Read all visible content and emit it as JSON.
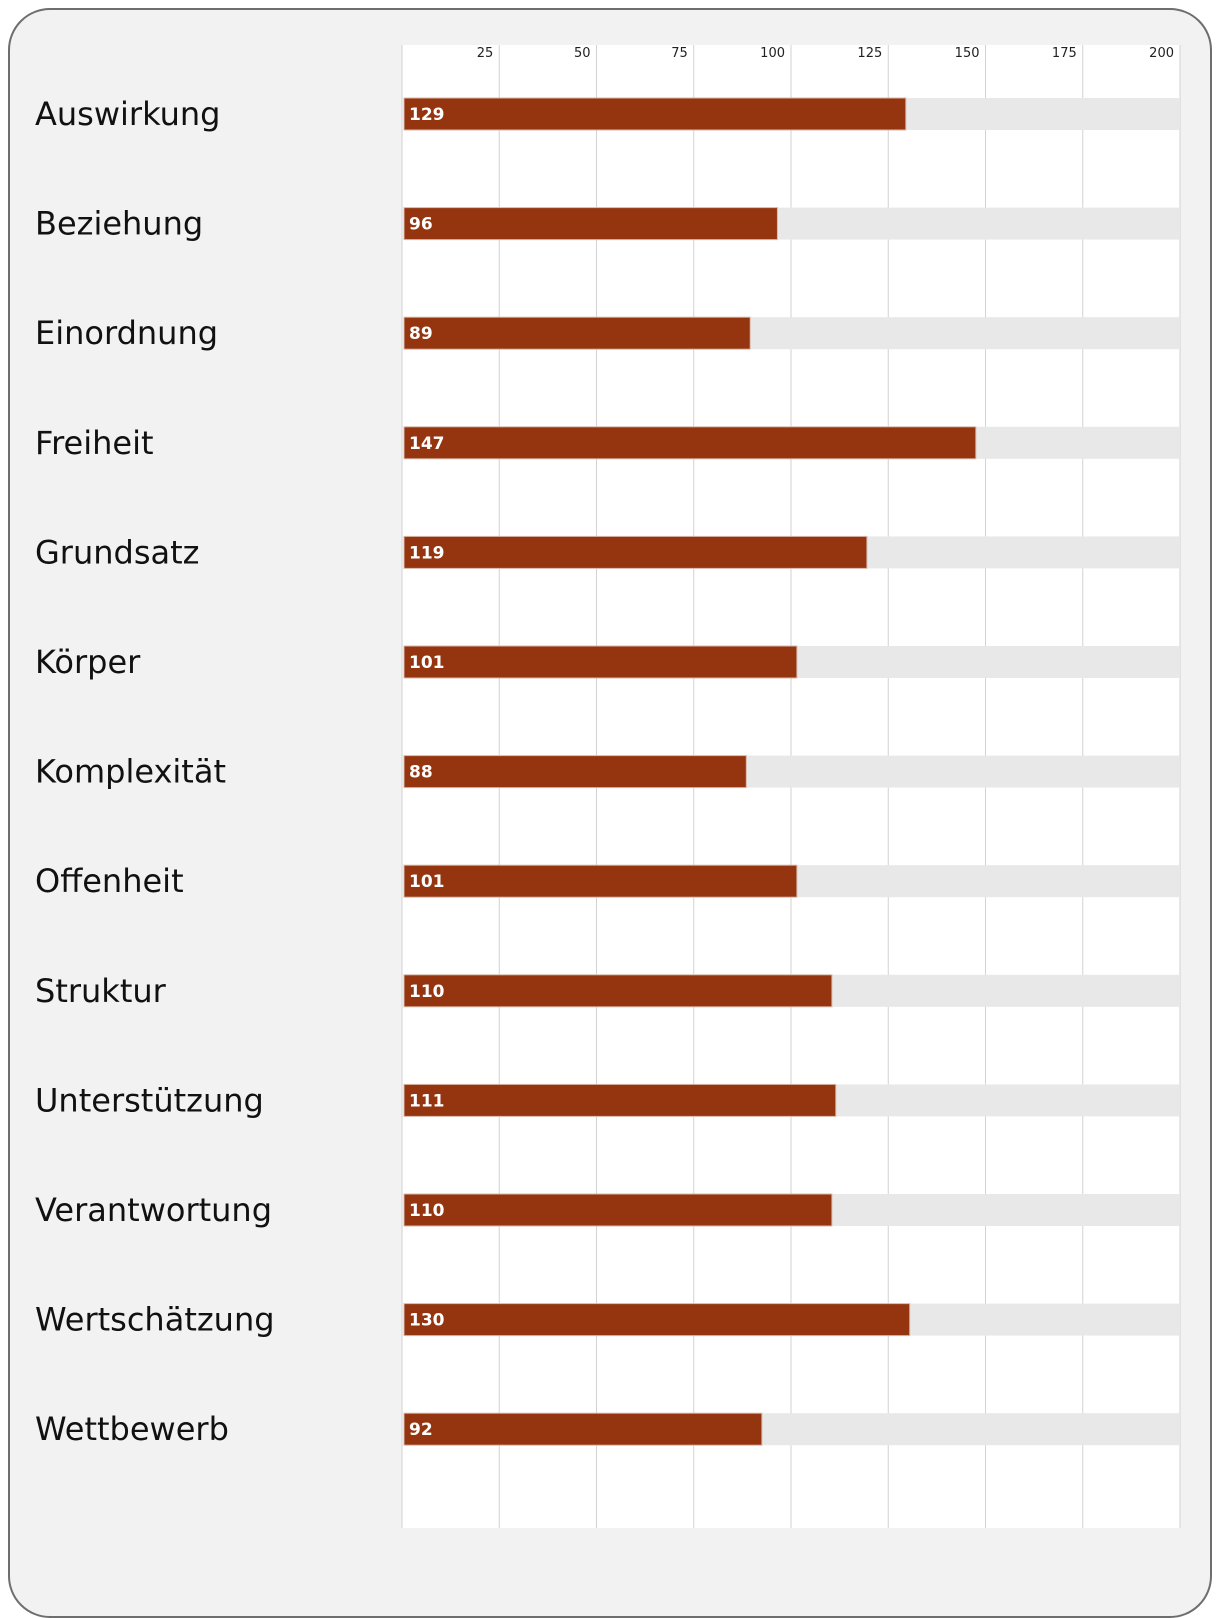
{
  "chart_data": {
    "type": "bar",
    "orientation": "horizontal",
    "categories": [
      "Auswirkung",
      "Beziehung",
      "Einordnung",
      "Freiheit",
      "Grundsatz",
      "Körper",
      "Komplexität",
      "Offenheit",
      "Struktur",
      "Unterstützung",
      "Verantwortung",
      "Wertschätzung",
      "Wettbewerb"
    ],
    "values": [
      129,
      96,
      89,
      147,
      119,
      101,
      88,
      101,
      110,
      111,
      110,
      130,
      92
    ],
    "value_labels": [
      "129",
      "96",
      "89",
      "147",
      "119",
      "101",
      "88",
      "101",
      "110",
      "111",
      "110",
      "130",
      "92"
    ],
    "xticks": [
      25,
      50,
      75,
      100,
      125,
      150,
      175,
      200
    ],
    "xtick_labels": [
      "25",
      "50",
      "75",
      "100",
      "125",
      "150",
      "175",
      "200"
    ],
    "xlim": [
      0,
      200
    ],
    "tick_position": "top",
    "grid": true,
    "title": "",
    "xlabel": "",
    "ylabel": "",
    "colors": {
      "bar": "#953510",
      "track": "#e8e8e8",
      "panel": "#f2f2f2",
      "plot": "#ffffff",
      "grid": "#d2d2d2",
      "label": "#111111"
    }
  }
}
